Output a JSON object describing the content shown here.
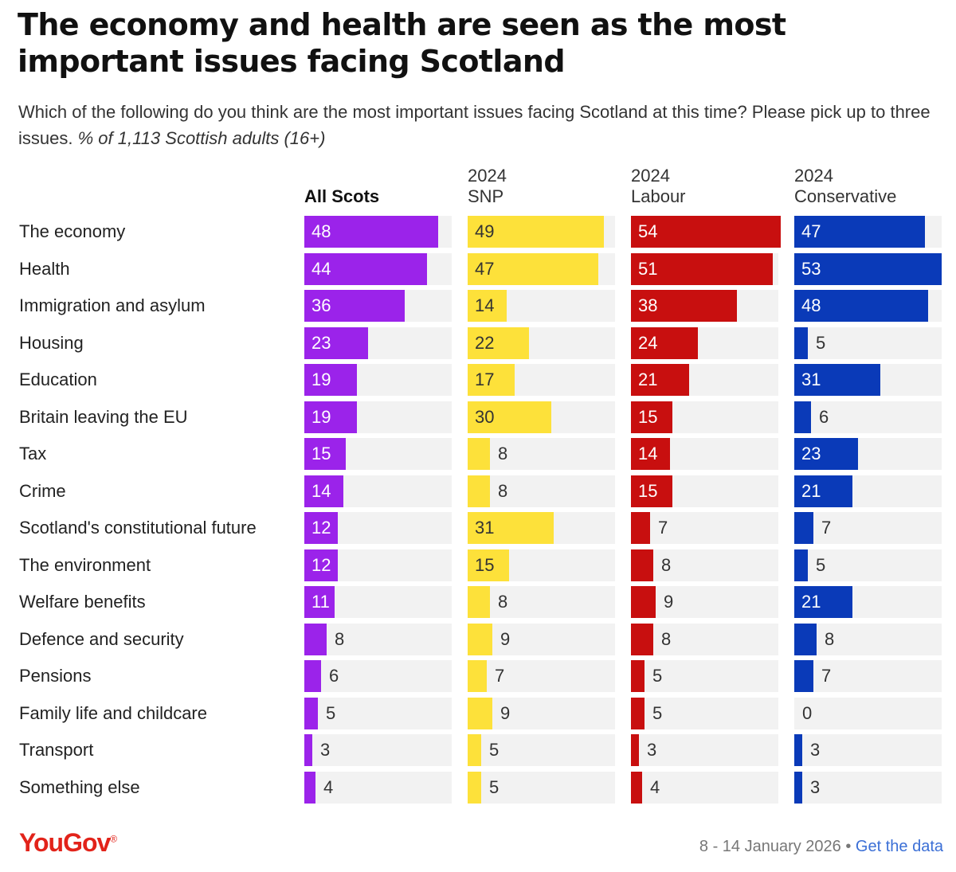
{
  "title": "The economy and health are seen as the most important issues facing Scotland",
  "subtitle": "Which of the following do you think are the most important issues facing Scotland at this time? Please pick up to three issues.",
  "subtitle_note": "% of 1,113 Scottish adults (16+)",
  "columns": [
    {
      "line1": "",
      "line2": "All Scots",
      "color": "#9b23ea",
      "text_on_bar": "#ffffff"
    },
    {
      "line1": "2024",
      "line2": "SNP",
      "color": "#fde13a",
      "text_on_bar": "#333333"
    },
    {
      "line1": "2024",
      "line2": "Labour",
      "color": "#c80f0f",
      "text_on_bar": "#ffffff"
    },
    {
      "line1": "2024",
      "line2": "Conservative",
      "color": "#0a3ab8",
      "text_on_bar": "#ffffff"
    }
  ],
  "chart_data": {
    "type": "bar",
    "orientation": "horizontal",
    "categories": [
      "The economy",
      "Health",
      "Immigration and asylum",
      "Housing",
      "Education",
      "Britain leaving the EU",
      "Tax",
      "Crime",
      "Scotland's constitutional future",
      "The environment",
      "Welfare benefits",
      "Defence and security",
      "Pensions",
      "Family life and childcare",
      "Transport",
      "Something else"
    ],
    "series": [
      {
        "name": "All Scots",
        "values": [
          48,
          44,
          36,
          23,
          19,
          19,
          15,
          14,
          12,
          12,
          11,
          8,
          6,
          5,
          3,
          4
        ]
      },
      {
        "name": "2024 SNP",
        "values": [
          49,
          47,
          14,
          22,
          17,
          30,
          8,
          8,
          31,
          15,
          8,
          9,
          7,
          9,
          5,
          5
        ]
      },
      {
        "name": "2024 Labour",
        "values": [
          54,
          51,
          38,
          24,
          21,
          15,
          14,
          15,
          7,
          8,
          9,
          8,
          5,
          5,
          3,
          4
        ]
      },
      {
        "name": "2024 Conservative",
        "values": [
          47,
          53,
          48,
          5,
          31,
          6,
          23,
          21,
          7,
          5,
          21,
          8,
          7,
          0,
          3,
          3
        ]
      }
    ],
    "xlim": [
      0,
      53
    ]
  },
  "logo": "YouGov",
  "footer": {
    "dates": "8 - 14 January 2026",
    "separator": " • ",
    "link": "Get the data"
  }
}
